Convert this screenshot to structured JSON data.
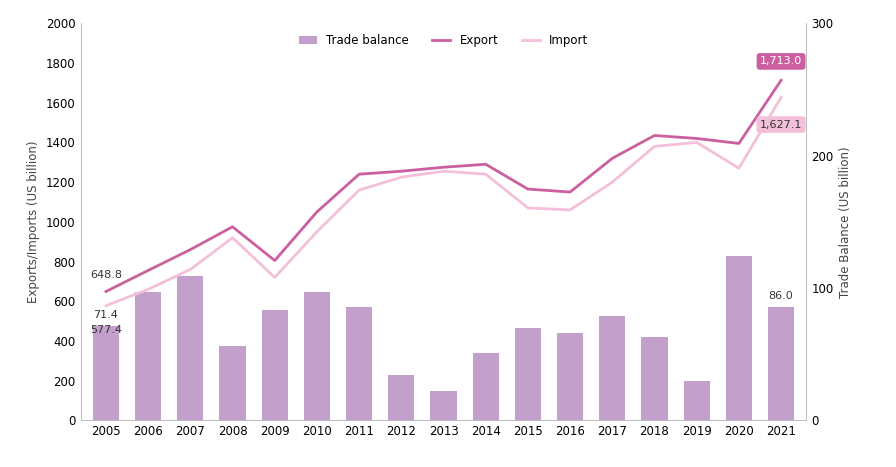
{
  "chart_data": {
    "type": "bar_line",
    "categories": [
      "2005",
      "2006",
      "2007",
      "2008",
      "2009",
      "2010",
      "2011",
      "2012",
      "2013",
      "2014",
      "2015",
      "2016",
      "2017",
      "2018",
      "2019",
      "2020",
      "2021"
    ],
    "y_label": "Exports/Imports (US billion)",
    "y2_label": "Trade Balance (US billion)",
    "ylim": [
      0,
      2000
    ],
    "yticks": [
      0,
      200,
      400,
      600,
      800,
      1000,
      1200,
      1400,
      1600,
      1800,
      2000
    ],
    "y2lim": [
      0,
      300
    ],
    "y2ticks": [
      0,
      100,
      200,
      300
    ],
    "legend": "upper center",
    "data_labels": true,
    "series": [
      {
        "name": "Trade balance",
        "type": "bar",
        "axis": "y2",
        "color": "#c3a0cc",
        "values": [
          71.4,
          96.6,
          109,
          56.5,
          83,
          96.6,
          86,
          34,
          22,
          51,
          70,
          66,
          79,
          63,
          30,
          124,
          86.0
        ],
        "value_labels": [
          "71.4",
          null,
          null,
          null,
          null,
          null,
          null,
          null,
          null,
          null,
          null,
          null,
          null,
          null,
          null,
          null,
          "86.0"
        ]
      },
      {
        "name": "Export",
        "type": "line",
        "color": "#cc5fa0",
        "values": [
          648.8,
          755,
          860,
          975,
          805,
          1050,
          1240,
          1255,
          1275,
          1290,
          1165,
          1150,
          1320,
          1435,
          1420,
          1395,
          1713.0
        ],
        "value_labels": [
          "648.8",
          null,
          null,
          null,
          null,
          null,
          null,
          null,
          null,
          null,
          null,
          null,
          null,
          null,
          null,
          null,
          "1,713.0"
        ]
      },
      {
        "name": "Import",
        "type": "line",
        "color": "#f4c0d9",
        "values": [
          577.4,
          660,
          760,
          920,
          720,
          950,
          1160,
          1225,
          1255,
          1240,
          1070,
          1060,
          1200,
          1380,
          1400,
          1270,
          1627.1
        ],
        "value_labels": [
          "577.4",
          null,
          null,
          null,
          null,
          null,
          null,
          null,
          null,
          null,
          null,
          null,
          null,
          null,
          null,
          null,
          "1,627.1"
        ]
      }
    ]
  }
}
